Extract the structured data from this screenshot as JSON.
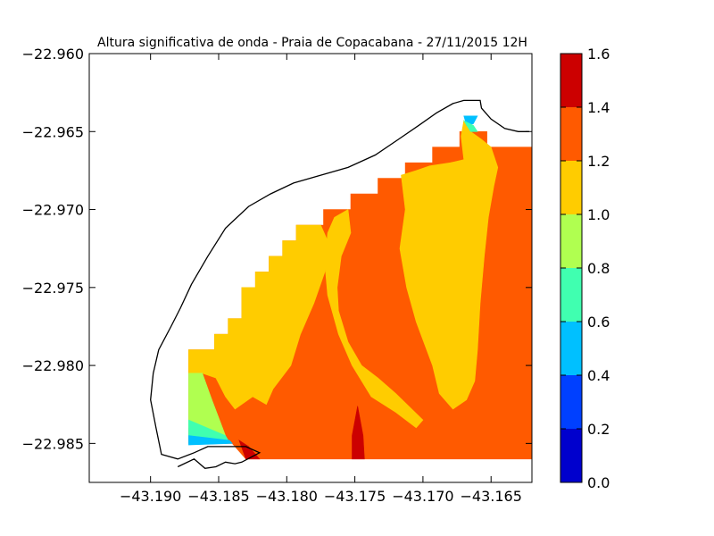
{
  "chart_data": {
    "type": "heatmap",
    "title": "Altura significativa de onda - Praia de Copacabana - 27/11/2015 12H",
    "xlabel": "",
    "ylabel": "",
    "xlim": [
      -43.1945,
      -43.162
    ],
    "ylim": [
      -22.9875,
      -22.96
    ],
    "x_ticks": [
      -43.19,
      -43.185,
      -43.18,
      -43.175,
      -43.17,
      -43.165
    ],
    "x_tick_labels": [
      "−43.190",
      "−43.185",
      "−43.180",
      "−43.175",
      "−43.170",
      "−43.165"
    ],
    "y_ticks": [
      -22.96,
      -22.965,
      -22.97,
      -22.975,
      -22.98,
      -22.985
    ],
    "y_tick_labels": [
      "−22.960",
      "−22.965",
      "−22.970",
      "−22.975",
      "−22.980",
      "−22.985"
    ],
    "grid": false,
    "colorbar": {
      "levels": [
        0.0,
        0.2,
        0.4,
        0.6,
        0.8,
        1.0,
        1.2,
        1.4,
        1.6
      ],
      "tick_labels": [
        "0.0",
        "0.2",
        "0.4",
        "0.6",
        "0.8",
        "1.0",
        "1.2",
        "1.4",
        "1.6"
      ],
      "colors": [
        "#0000cd",
        "#0040ff",
        "#00c0ff",
        "#40ffb0",
        "#b0ff50",
        "#ffcc00",
        "#ff5a00",
        "#cc0000"
      ]
    },
    "regions": [
      {
        "level": "1.2-1.4",
        "color": "#ff5a00",
        "polygon": [
          [
            -43.1872,
            -22.979
          ],
          [
            -43.1853,
            -22.979
          ],
          [
            -43.1853,
            -22.978
          ],
          [
            -43.1843,
            -22.978
          ],
          [
            -43.1843,
            -22.977
          ],
          [
            -43.1833,
            -22.977
          ],
          [
            -43.1833,
            -22.975
          ],
          [
            -43.1823,
            -22.975
          ],
          [
            -43.1823,
            -22.974
          ],
          [
            -43.1813,
            -22.974
          ],
          [
            -43.1813,
            -22.973
          ],
          [
            -43.1803,
            -22.973
          ],
          [
            -43.1803,
            -22.972
          ],
          [
            -43.1793,
            -22.972
          ],
          [
            -43.1793,
            -22.971
          ],
          [
            -43.1773,
            -22.971
          ],
          [
            -43.1773,
            -22.97
          ],
          [
            -43.1753,
            -22.97
          ],
          [
            -43.1753,
            -22.969
          ],
          [
            -43.1733,
            -22.969
          ],
          [
            -43.1733,
            -22.968
          ],
          [
            -43.1713,
            -22.968
          ],
          [
            -43.1713,
            -22.967
          ],
          [
            -43.1693,
            -22.967
          ],
          [
            -43.1693,
            -22.966
          ],
          [
            -43.1673,
            -22.966
          ],
          [
            -43.1673,
            -22.965
          ],
          [
            -43.1653,
            -22.965
          ],
          [
            -43.1653,
            -22.966
          ],
          [
            -43.162,
            -22.966
          ],
          [
            -43.162,
            -22.986
          ],
          [
            -43.183,
            -22.986
          ],
          [
            -43.184,
            -22.985
          ],
          [
            -43.1872,
            -22.985
          ]
        ]
      },
      {
        "level": "1.0-1.2",
        "color": "#ffcc00",
        "polygon": [
          [
            -43.1872,
            -22.979
          ],
          [
            -43.1853,
            -22.979
          ],
          [
            -43.1853,
            -22.978
          ],
          [
            -43.1843,
            -22.978
          ],
          [
            -43.1843,
            -22.977
          ],
          [
            -43.1833,
            -22.977
          ],
          [
            -43.1833,
            -22.975
          ],
          [
            -43.1823,
            -22.975
          ],
          [
            -43.1823,
            -22.974
          ],
          [
            -43.1813,
            -22.974
          ],
          [
            -43.1813,
            -22.973
          ],
          [
            -43.1803,
            -22.973
          ],
          [
            -43.1803,
            -22.972
          ],
          [
            -43.1793,
            -22.972
          ],
          [
            -43.1793,
            -22.971
          ],
          [
            -43.1775,
            -22.971
          ],
          [
            -43.177,
            -22.972
          ],
          [
            -43.1772,
            -22.974
          ],
          [
            -43.178,
            -22.976
          ],
          [
            -43.179,
            -22.978
          ],
          [
            -43.1797,
            -22.98
          ],
          [
            -43.181,
            -22.9815
          ],
          [
            -43.1815,
            -22.9825
          ],
          [
            -43.1825,
            -22.982
          ],
          [
            -43.1838,
            -22.9828
          ],
          [
            -43.1845,
            -22.982
          ],
          [
            -43.1852,
            -22.9808
          ],
          [
            -43.1862,
            -22.9805
          ],
          [
            -43.1872,
            -22.9805
          ]
        ]
      },
      {
        "level": "1.0-1.2",
        "color": "#ffcc00",
        "polygon": [
          [
            -43.1755,
            -22.97
          ],
          [
            -43.1753,
            -22.9715
          ],
          [
            -43.176,
            -22.973
          ],
          [
            -43.1763,
            -22.975
          ],
          [
            -43.1762,
            -22.9765
          ],
          [
            -43.1755,
            -22.9785
          ],
          [
            -43.1745,
            -22.98
          ],
          [
            -43.1733,
            -22.9808
          ],
          [
            -43.172,
            -22.9818
          ],
          [
            -43.17,
            -22.9835
          ],
          [
            -43.1705,
            -22.984
          ],
          [
            -43.172,
            -22.983
          ],
          [
            -43.1738,
            -22.982
          ],
          [
            -43.1752,
            -22.98
          ],
          [
            -43.1762,
            -22.978
          ],
          [
            -43.177,
            -22.9755
          ],
          [
            -43.1772,
            -22.9735
          ],
          [
            -43.177,
            -22.9715
          ],
          [
            -43.1765,
            -22.9705
          ]
        ]
      },
      {
        "level": "1.0-1.2",
        "color": "#ffcc00",
        "polygon": [
          [
            -43.1716,
            -22.9678
          ],
          [
            -43.1713,
            -22.97
          ],
          [
            -43.1717,
            -22.9725
          ],
          [
            -43.1712,
            -22.975
          ],
          [
            -43.1705,
            -22.9772
          ],
          [
            -43.1693,
            -22.98
          ],
          [
            -43.1688,
            -22.9818
          ],
          [
            -43.1678,
            -22.9828
          ],
          [
            -43.1668,
            -22.9822
          ],
          [
            -43.1662,
            -22.981
          ],
          [
            -43.166,
            -22.979
          ],
          [
            -43.1658,
            -22.976
          ],
          [
            -43.1655,
            -22.973
          ],
          [
            -43.1652,
            -22.9705
          ],
          [
            -43.1648,
            -22.9685
          ],
          [
            -43.1645,
            -22.9673
          ],
          [
            -43.165,
            -22.966
          ],
          [
            -43.1657,
            -22.9655
          ],
          [
            -43.1665,
            -22.965
          ],
          [
            -43.167,
            -22.9643
          ],
          [
            -43.1672,
            -22.9653
          ],
          [
            -43.167,
            -22.9668
          ],
          [
            -43.168,
            -22.967
          ],
          [
            -43.1695,
            -22.9672
          ],
          [
            -43.1705,
            -22.9675
          ]
        ]
      },
      {
        "level": "0.8-1.0",
        "color": "#b0ff50",
        "polygon": [
          [
            -43.1872,
            -22.9805
          ],
          [
            -43.1862,
            -22.9805
          ],
          [
            -43.1855,
            -22.9822
          ],
          [
            -43.1848,
            -22.9838
          ],
          [
            -43.1845,
            -22.9845
          ],
          [
            -43.1872,
            -22.984
          ]
        ]
      },
      {
        "level": "0.6-0.8",
        "color": "#40ffb0",
        "polygon": [
          [
            -43.1872,
            -22.9835
          ],
          [
            -43.1845,
            -22.9845
          ],
          [
            -43.1843,
            -22.9848
          ],
          [
            -43.1872,
            -22.9846
          ]
        ]
      },
      {
        "level": "0.4-0.6",
        "color": "#00c0ff",
        "polygon": [
          [
            -43.1872,
            -22.9845
          ],
          [
            -43.1842,
            -22.9848
          ],
          [
            -43.184,
            -22.985
          ],
          [
            -43.1872,
            -22.9851
          ]
        ]
      },
      {
        "level": "1.4-1.6",
        "color": "#cc0000",
        "polygon": [
          [
            -43.1835,
            -22.9848
          ],
          [
            -43.183,
            -22.986
          ],
          [
            -43.182,
            -22.986
          ],
          [
            -43.1828,
            -22.9852
          ]
        ]
      },
      {
        "level": "1.4-1.6",
        "color": "#cc0000",
        "polygon": [
          [
            -43.1748,
            -22.9826
          ],
          [
            -43.1744,
            -22.9845
          ],
          [
            -43.1743,
            -22.986
          ],
          [
            -43.1752,
            -22.986
          ],
          [
            -43.1752,
            -22.9845
          ]
        ]
      },
      {
        "level": "0.4-0.6",
        "color": "#00c0ff",
        "polygon": [
          [
            -43.167,
            -22.964
          ],
          [
            -43.166,
            -22.964
          ],
          [
            -43.1663,
            -22.9645
          ],
          [
            -43.1668,
            -22.9646
          ]
        ]
      },
      {
        "level": "0.6-0.8",
        "color": "#40ffb0",
        "polygon": [
          [
            -43.167,
            -22.9643
          ],
          [
            -43.1663,
            -22.9646
          ],
          [
            -43.166,
            -22.965
          ],
          [
            -43.1665,
            -22.965
          ]
        ]
      }
    ],
    "coastline": [
      [
        -43.188,
        -22.9865
      ],
      [
        -43.1868,
        -22.986
      ],
      [
        -43.186,
        -22.9866
      ],
      [
        -43.1852,
        -22.9865
      ],
      [
        -43.1845,
        -22.9862
      ],
      [
        -43.1838,
        -22.9863
      ],
      [
        -43.1833,
        -22.9862
      ],
      [
        -43.182,
        -22.9856
      ],
      [
        -43.183,
        -22.9852
      ],
      [
        -43.1845,
        -22.9852
      ],
      [
        -43.1858,
        -22.9852
      ],
      [
        -43.1868,
        -22.9856
      ],
      [
        -43.188,
        -22.986
      ],
      [
        -43.1892,
        -22.9857
      ],
      [
        -43.1896,
        -22.984
      ],
      [
        -43.19,
        -22.9822
      ],
      [
        -43.1898,
        -22.9805
      ],
      [
        -43.1894,
        -22.979
      ],
      [
        -43.1885,
        -22.9775
      ],
      [
        -43.1878,
        -22.9763
      ],
      [
        -43.187,
        -22.9748
      ],
      [
        -43.1858,
        -22.973
      ],
      [
        -43.1845,
        -22.9712
      ],
      [
        -43.1828,
        -22.9698
      ],
      [
        -43.1812,
        -22.969
      ],
      [
        -43.1795,
        -22.9683
      ],
      [
        -43.1775,
        -22.9678
      ],
      [
        -43.1755,
        -22.9673
      ],
      [
        -43.1735,
        -22.9665
      ],
      [
        -43.1718,
        -22.9655
      ],
      [
        -43.1703,
        -22.9646
      ],
      [
        -43.169,
        -22.9638
      ],
      [
        -43.1678,
        -22.9632
      ],
      [
        -43.167,
        -22.963
      ],
      [
        -43.1658,
        -22.963
      ],
      [
        -43.1657,
        -22.9635
      ],
      [
        -43.165,
        -22.9642
      ],
      [
        -43.164,
        -22.9648
      ],
      [
        -43.163,
        -22.965
      ],
      [
        -43.1622,
        -22.965
      ]
    ]
  }
}
